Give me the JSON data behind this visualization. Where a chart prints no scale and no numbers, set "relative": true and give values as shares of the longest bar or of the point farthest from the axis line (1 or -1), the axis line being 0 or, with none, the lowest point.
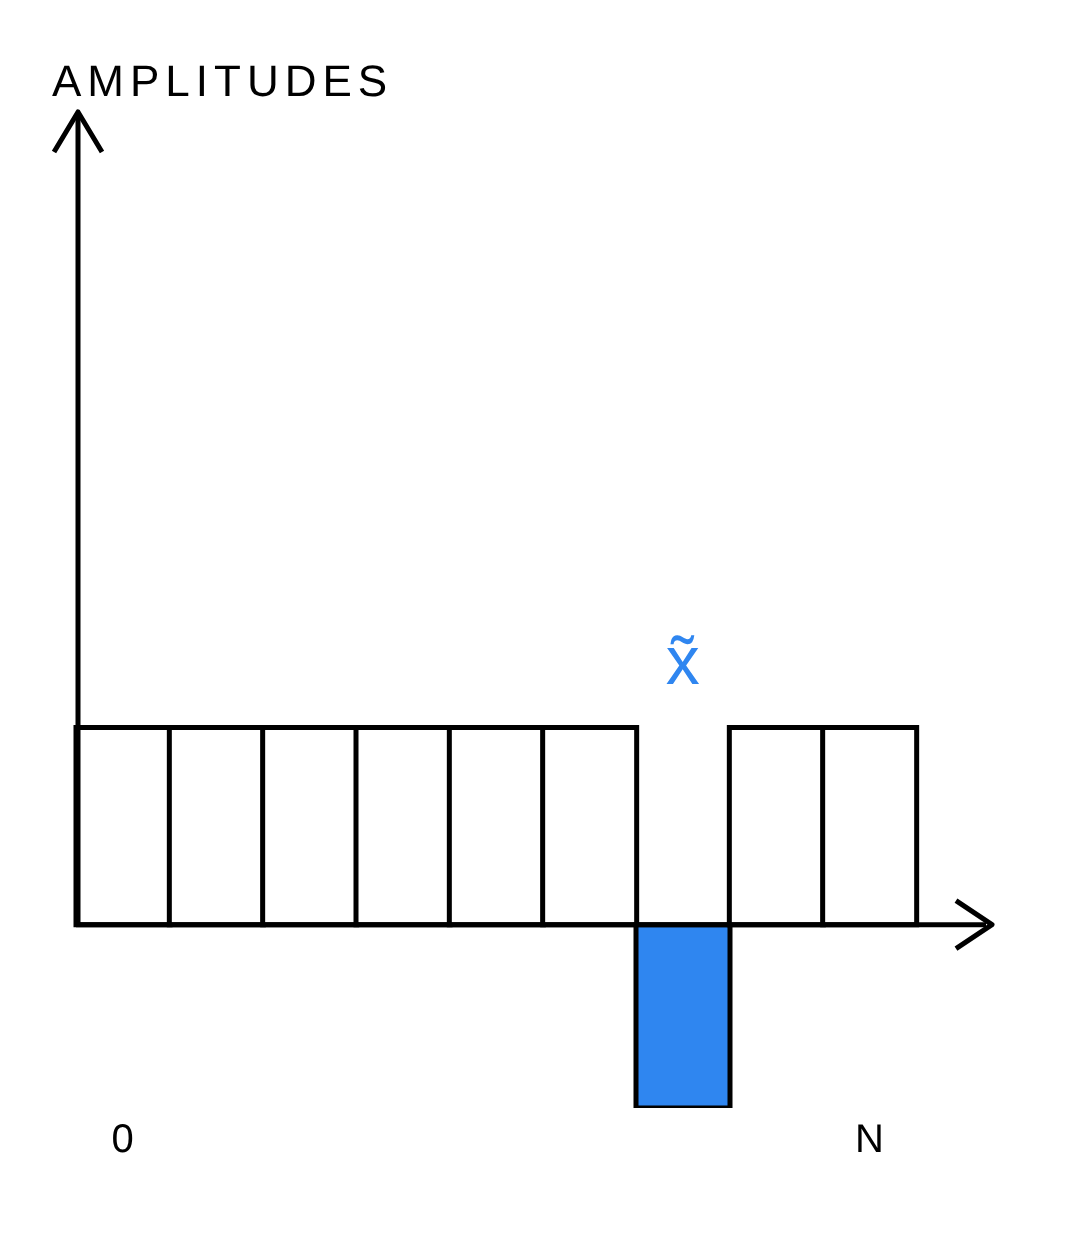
{
  "chart_data": {
    "type": "bar",
    "relative": true,
    "categories": [
      "0",
      null,
      null,
      null,
      null,
      null,
      null,
      null,
      "N"
    ],
    "values": [
      1,
      1,
      1,
      1,
      1,
      1,
      -0.93,
      1,
      1
    ],
    "colors": [
      "#ffffff",
      "#ffffff",
      "#ffffff",
      "#ffffff",
      "#ffffff",
      "#ffffff",
      "#2f86f0",
      "#ffffff",
      "#ffffff"
    ],
    "annotations": [
      "AMPLITUDES",
      "x̃"
    ]
  }
}
